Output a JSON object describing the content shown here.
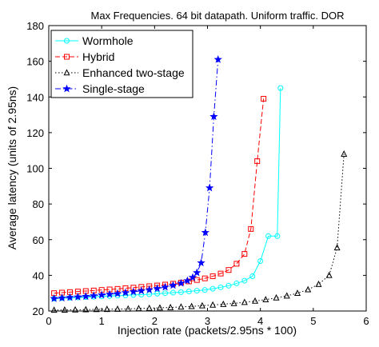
{
  "chart_data": {
    "type": "line",
    "title": "Max Frequencies. 64 bit datapath. Uniform traffic. DOR",
    "xlabel": "Injection rate (packets/2.95ns * 100)",
    "ylabel": "Average latency (units of 2.95ns)",
    "xlim": [
      0,
      6
    ],
    "ylim": [
      20,
      180
    ],
    "xticks": [
      "0",
      "1",
      "2",
      "3",
      "4",
      "5",
      "6"
    ],
    "yticks": [
      "20",
      "40",
      "60",
      "80",
      "100",
      "120",
      "140",
      "160",
      "180"
    ],
    "grid": false,
    "legend_position": "top-left",
    "series": [
      {
        "name": "Wormhole",
        "color": "#00ffff",
        "line_style": "solid",
        "marker": "circle",
        "x": [
          0.1,
          0.25,
          0.4,
          0.55,
          0.7,
          0.85,
          1.0,
          1.15,
          1.3,
          1.45,
          1.6,
          1.75,
          1.9,
          2.05,
          2.2,
          2.35,
          2.5,
          2.65,
          2.8,
          2.95,
          3.1,
          3.25,
          3.4,
          3.55,
          3.7,
          3.85,
          4.0,
          4.15,
          4.32,
          4.38
        ],
        "y": [
          27.0,
          27.2,
          27.4,
          27.6,
          27.8,
          28.0,
          28.2,
          28.4,
          28.6,
          28.8,
          29.0,
          29.2,
          29.4,
          29.7,
          30.0,
          30.3,
          30.6,
          31.0,
          31.4,
          31.8,
          32.5,
          33.3,
          34.2,
          35.5,
          37.0,
          39.5,
          48.0,
          62.0,
          62.0,
          145.0
        ]
      },
      {
        "name": "Hybrid",
        "color": "#ff0000",
        "line_style": "dashed",
        "marker": "square",
        "x": [
          0.1,
          0.25,
          0.4,
          0.55,
          0.7,
          0.85,
          1.0,
          1.15,
          1.3,
          1.45,
          1.6,
          1.75,
          1.9,
          2.05,
          2.2,
          2.35,
          2.5,
          2.65,
          2.8,
          2.95,
          3.1,
          3.25,
          3.4,
          3.55,
          3.7,
          3.82,
          3.94,
          4.06
        ],
        "y": [
          30.0,
          30.3,
          30.6,
          30.9,
          31.2,
          31.5,
          31.8,
          32.1,
          32.4,
          32.8,
          33.1,
          33.5,
          33.9,
          34.3,
          34.8,
          35.3,
          35.9,
          36.6,
          37.4,
          38.3,
          39.5,
          41.0,
          43.0,
          46.5,
          52.0,
          66.0,
          104.0,
          139.0
        ]
      },
      {
        "name": "Enhanced two-stage",
        "color": "#000000",
        "line_style": "dotted",
        "marker": "triangle",
        "x": [
          0.1,
          0.3,
          0.5,
          0.7,
          0.9,
          1.1,
          1.3,
          1.5,
          1.7,
          1.9,
          2.1,
          2.3,
          2.5,
          2.7,
          2.9,
          3.1,
          3.3,
          3.5,
          3.7,
          3.9,
          4.1,
          4.3,
          4.5,
          4.7,
          4.9,
          5.1,
          5.3,
          5.45,
          5.58
        ],
        "y": [
          20.5,
          20.6,
          20.7,
          20.8,
          20.9,
          21.0,
          21.1,
          21.2,
          21.4,
          21.6,
          21.8,
          22.0,
          22.3,
          22.6,
          23.0,
          23.4,
          23.8,
          24.3,
          24.9,
          25.6,
          26.4,
          27.4,
          28.5,
          30.0,
          32.0,
          35.0,
          40.0,
          55.5,
          108.0
        ]
      },
      {
        "name": "Single-stage",
        "color": "#0000ff",
        "line_style": "dashdot",
        "marker": "star",
        "x": [
          0.1,
          0.25,
          0.4,
          0.55,
          0.7,
          0.85,
          1.0,
          1.15,
          1.3,
          1.45,
          1.6,
          1.75,
          1.9,
          2.05,
          2.2,
          2.35,
          2.5,
          2.62,
          2.72,
          2.8,
          2.88,
          2.96,
          3.04,
          3.12,
          3.2
        ],
        "y": [
          27.0,
          27.3,
          27.6,
          27.9,
          28.2,
          28.6,
          29.0,
          29.4,
          29.8,
          30.3,
          30.8,
          31.3,
          31.9,
          32.6,
          33.4,
          34.4,
          35.6,
          37.0,
          38.8,
          41.5,
          47.0,
          64.0,
          89.0,
          129.0,
          161.0
        ]
      }
    ]
  }
}
